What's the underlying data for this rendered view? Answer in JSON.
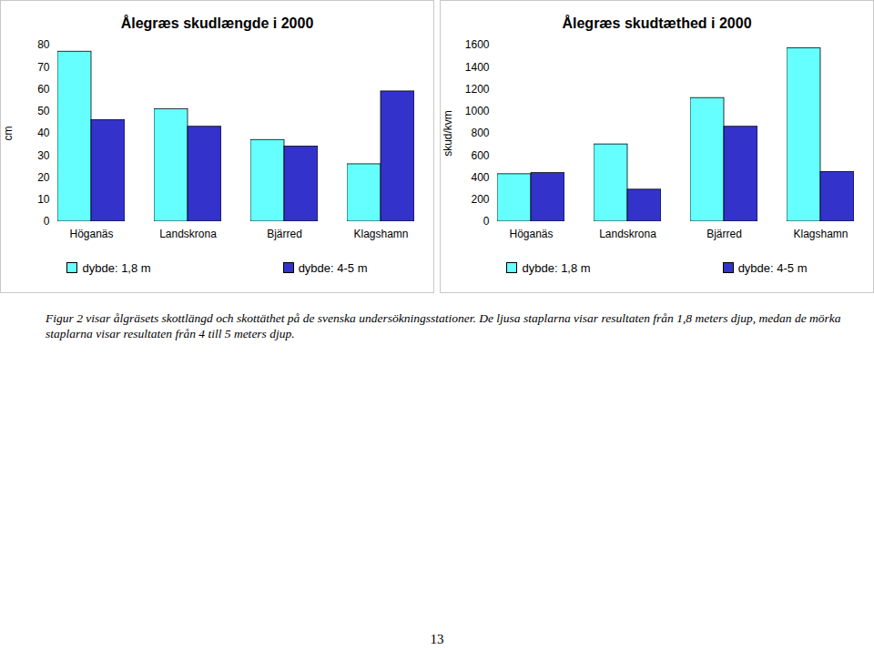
{
  "chart_data": [
    {
      "type": "bar",
      "title": "Ålegræs skudlængde i 2000",
      "y_label": "cm",
      "categories": [
        "Höganäs",
        "Landskrona",
        "Bjärred",
        "Klagshamn"
      ],
      "series": [
        {
          "name": "dybde: 1,8 m",
          "color": "#66ffff",
          "values": [
            77,
            51,
            37,
            26
          ]
        },
        {
          "name": "dybde: 4-5 m",
          "color": "#3333cc",
          "values": [
            46,
            43,
            34,
            59
          ]
        }
      ],
      "ylim": [
        0,
        80
      ],
      "yticks": [
        0,
        10,
        20,
        30,
        40,
        50,
        60,
        70,
        80
      ],
      "grid": false,
      "legend": "bottom"
    },
    {
      "type": "bar",
      "title": "Ålegræs skudtæthed i 2000",
      "y_label": "skud/kvm",
      "categories": [
        "Höganäs",
        "Landskrona",
        "Bjärred",
        "Klagshamn"
      ],
      "series": [
        {
          "name": "dybde: 1,8 m",
          "color": "#66ffff",
          "values": [
            430,
            700,
            1120,
            1570
          ]
        },
        {
          "name": "dybde: 4-5 m",
          "color": "#3333cc",
          "values": [
            440,
            290,
            860,
            450
          ]
        }
      ],
      "ylim": [
        0,
        1600
      ],
      "yticks": [
        0,
        200,
        400,
        600,
        800,
        1000,
        1200,
        1400,
        1600
      ],
      "grid": false,
      "legend": "bottom"
    }
  ],
  "caption": "Figur 2 visar ålgräsets skottlängd och skottäthet på de svenska undersökningsstationer. De ljusa staplarna visar resultaten från 1,8 meters djup, medan de mörka  staplarna visar resultaten från 4 till 5 meters djup.",
  "page_number": 13
}
